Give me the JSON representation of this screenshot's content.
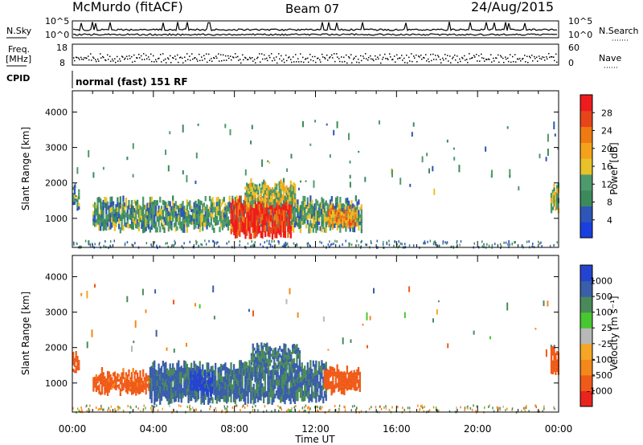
{
  "header": {
    "station": "McMurdo (fitACF)",
    "beam": "Beam 07",
    "date": "24/Aug/2015"
  },
  "status_rows": {
    "left_labels": {
      "nsky": "N.Sky",
      "freq_line1": "Freq.",
      "freq_line2": "[MHz]",
      "cpid": "CPID"
    },
    "right_labels": {
      "nsearch": "N.Search",
      "nave": "Nave"
    },
    "noise_ticks_left": [
      "10^5",
      "10^0"
    ],
    "noise_ticks_right": [
      "10^5",
      "10^0"
    ],
    "freq_ticks": [
      "18",
      "8"
    ],
    "nave_ticks": [
      "60",
      "0"
    ],
    "cpid_text": "normal (fast) 151 RF"
  },
  "colors": {
    "power_scale": [
      "#1a3fe0",
      "#2f55b8",
      "#3c8a5c",
      "#4f9a6c",
      "#e8c22a",
      "#f4a21a",
      "#f07a12",
      "#e8441a",
      "#ee1c1c"
    ],
    "velocity_scale": [
      "#e8241c",
      "#f05a18",
      "#f4881a",
      "#f4a624",
      "#b8b8b8",
      "#48c830",
      "#4a8a5a",
      "#3a5ea8",
      "#2444d0"
    ]
  },
  "chart_data": [
    {
      "type": "heatmap",
      "title": "Power",
      "ylabel": "Slant Range [km]",
      "xlabel": "Time UT",
      "x_ticks": [
        "00:00",
        "04:00",
        "08:00",
        "12:00",
        "16:00",
        "20:00",
        "00:00"
      ],
      "y_ticks": [
        "1000",
        "2000",
        "3000",
        "4000"
      ],
      "xlim_hours": [
        0,
        24
      ],
      "ylim_km": [
        180,
        4600
      ],
      "colorbar": {
        "label": "Power [dB]",
        "ticks": [
          "4",
          "8",
          "12",
          "16",
          "20",
          "24",
          "28"
        ],
        "range": [
          0,
          30
        ]
      },
      "features": [
        {
          "name": "main-band",
          "t_start": 1.0,
          "t_end": 14.3,
          "range_km": [
            700,
            1500
          ],
          "power_db": 10
        },
        {
          "name": "strong-core",
          "t_start": 7.8,
          "t_end": 10.8,
          "range_km": [
            500,
            1500
          ],
          "power_db": 27
        },
        {
          "name": "upper-tongue",
          "t_start": 8.5,
          "t_end": 11.0,
          "range_km": [
            1400,
            2000
          ],
          "power_db": 14
        },
        {
          "name": "late-cluster",
          "t_start": 12.6,
          "t_end": 14.0,
          "range_km": [
            800,
            1300
          ],
          "power_db": 20
        },
        {
          "name": "morning-patch",
          "t_start": 0.0,
          "t_end": 0.3,
          "range_km": [
            1300,
            1800
          ],
          "power_db": 9
        },
        {
          "name": "evening-patch",
          "t_start": 23.6,
          "t_end": 24.0,
          "range_km": [
            1200,
            1900
          ],
          "power_db": 13
        }
      ]
    },
    {
      "type": "heatmap",
      "title": "Velocity",
      "ylabel": "Slant Range [km]",
      "xlabel": "Time UT",
      "x_ticks": [
        "00:00",
        "04:00",
        "08:00",
        "12:00",
        "16:00",
        "20:00",
        "00:00"
      ],
      "y_ticks": [
        "1000",
        "2000",
        "3000",
        "4000"
      ],
      "xlim_hours": [
        0,
        24
      ],
      "ylim_km": [
        180,
        4600
      ],
      "colorbar": {
        "label": "Velocity [m s⁻¹]",
        "ticks": [
          "1000",
          "500",
          "100",
          "25",
          "-25",
          "-100",
          "-500",
          "-1000"
        ],
        "range": [
          -1000,
          1000
        ]
      },
      "features": [
        {
          "name": "morning-band",
          "t_start": 1.0,
          "t_end": 3.8,
          "range_km": [
            750,
            1300
          ],
          "velocity": -150
        },
        {
          "name": "main-band",
          "t_start": 3.8,
          "t_end": 12.5,
          "range_km": [
            500,
            1500
          ],
          "velocity": 120
        },
        {
          "name": "blue-core",
          "t_start": 5.8,
          "t_end": 6.9,
          "range_km": [
            700,
            1300
          ],
          "velocity": 800
        },
        {
          "name": "upper-tongue",
          "t_start": 8.8,
          "t_end": 11.2,
          "range_km": [
            1400,
            2000
          ],
          "velocity": 100
        },
        {
          "name": "late-cluster",
          "t_start": 12.4,
          "t_end": 14.2,
          "range_km": [
            750,
            1400
          ],
          "velocity": -250
        },
        {
          "name": "morning-patch",
          "t_start": 0.0,
          "t_end": 0.3,
          "range_km": [
            1300,
            1800
          ],
          "velocity": -200
        },
        {
          "name": "evening-patch",
          "t_start": 23.6,
          "t_end": 24.0,
          "range_km": [
            1200,
            1900
          ],
          "velocity": -300
        }
      ]
    }
  ]
}
